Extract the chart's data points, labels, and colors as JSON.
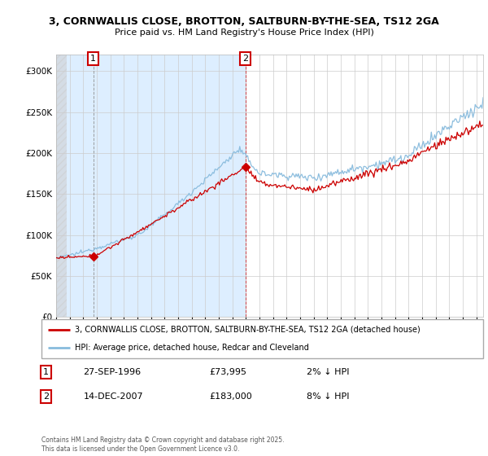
{
  "title1": "3, CORNWALLIS CLOSE, BROTTON, SALTBURN-BY-THE-SEA, TS12 2GA",
  "title2": "Price paid vs. HM Land Registry's House Price Index (HPI)",
  "legend_line1": "3, CORNWALLIS CLOSE, BROTTON, SALTBURN-BY-THE-SEA, TS12 2GA (detached house)",
  "legend_line2": "HPI: Average price, detached house, Redcar and Cleveland",
  "annotation1_date": "27-SEP-1996",
  "annotation1_price": "£73,995",
  "annotation1_hpi": "2% ↓ HPI",
  "annotation2_date": "14-DEC-2007",
  "annotation2_price": "£183,000",
  "annotation2_hpi": "8% ↓ HPI",
  "footer": "Contains HM Land Registry data © Crown copyright and database right 2025.\nThis data is licensed under the Open Government Licence v3.0.",
  "price_color": "#cc0000",
  "hpi_color": "#88bbdd",
  "ann1_border": "#cc0000",
  "ann2_border": "#cc0000",
  "bg_color": "#ffffff",
  "grid_color": "#cccccc",
  "blue_fill": "#ddeeff",
  "ylim": [
    0,
    320000
  ],
  "yticks": [
    0,
    50000,
    100000,
    150000,
    200000,
    250000,
    300000
  ],
  "sale1_year": 1996.74,
  "sale1_price": 73995,
  "sale2_year": 2007.96,
  "sale2_price": 183000,
  "xmin": 1994,
  "xmax": 2025.5
}
